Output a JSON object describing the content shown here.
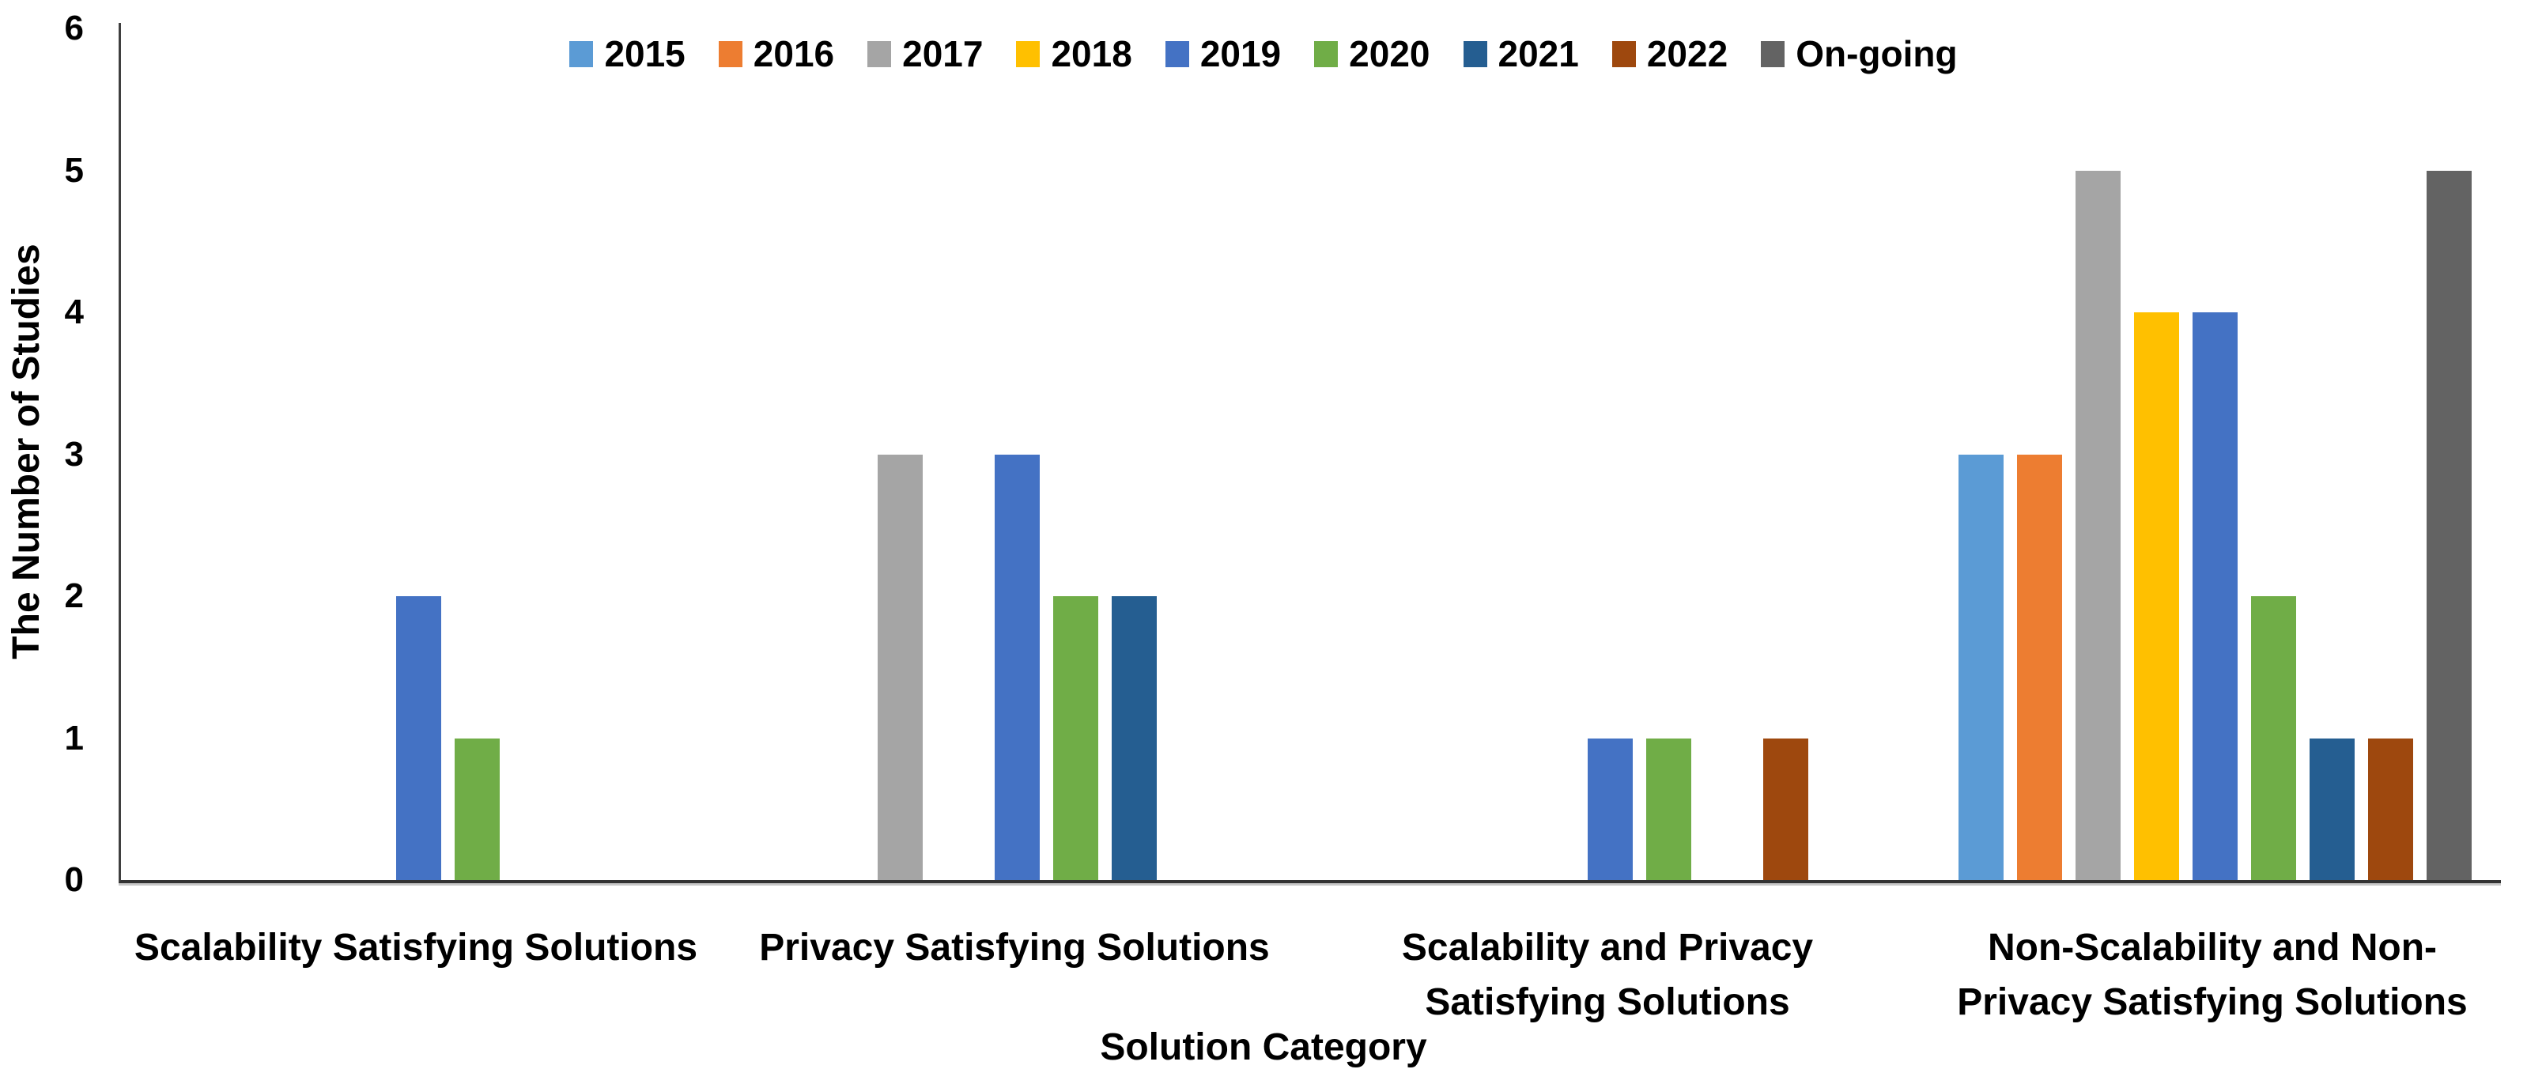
{
  "chart_data": {
    "type": "bar",
    "title": "",
    "xlabel": "Solution Category",
    "ylabel": "The Number of Studies",
    "ylim": [
      0,
      6
    ],
    "yticks": [
      0,
      1,
      2,
      3,
      4,
      5,
      6
    ],
    "grid": false,
    "legend_position": "top",
    "categories": [
      {
        "id": "scalability-satisfying-solutions",
        "label_lines": [
          "Scalability Satisfying Solutions"
        ]
      },
      {
        "id": "privacy-satisfying-solutions",
        "label_lines": [
          "Privacy Satisfying Solutions"
        ]
      },
      {
        "id": "scalability-and-privacy-satisfying-solutions",
        "label_lines": [
          "Scalability and Privacy",
          "Satisfying Solutions"
        ]
      },
      {
        "id": "non-scalability-and-non-privacy-satisfying-solutions",
        "label_lines": [
          "Non-Scalability and Non-",
          "Privacy Satisfying Solutions"
        ]
      }
    ],
    "series": [
      {
        "name": "2015",
        "color": "#5B9BD5",
        "values": [
          0,
          0,
          0,
          3
        ]
      },
      {
        "name": "2016",
        "color": "#ED7D31",
        "values": [
          0,
          0,
          0,
          3
        ]
      },
      {
        "name": "2017",
        "color": "#A5A5A5",
        "values": [
          0,
          3,
          0,
          5
        ]
      },
      {
        "name": "2018",
        "color": "#FFC000",
        "values": [
          0,
          0,
          0,
          4
        ]
      },
      {
        "name": "2019",
        "color": "#4472C4",
        "values": [
          2,
          3,
          1,
          4
        ]
      },
      {
        "name": "2020",
        "color": "#70AD47",
        "values": [
          1,
          2,
          1,
          2
        ]
      },
      {
        "name": "2021",
        "color": "#255E91",
        "values": [
          0,
          2,
          0,
          1
        ]
      },
      {
        "name": "2022",
        "color": "#9E480E",
        "values": [
          0,
          0,
          1,
          1
        ]
      },
      {
        "name": "On-going",
        "color": "#636363",
        "values": [
          0,
          0,
          0,
          5
        ]
      }
    ],
    "axis_colors": {
      "axis_line": "#3f3f3f",
      "axis_shadow": "#c8c8c8",
      "text": "#000000"
    }
  }
}
